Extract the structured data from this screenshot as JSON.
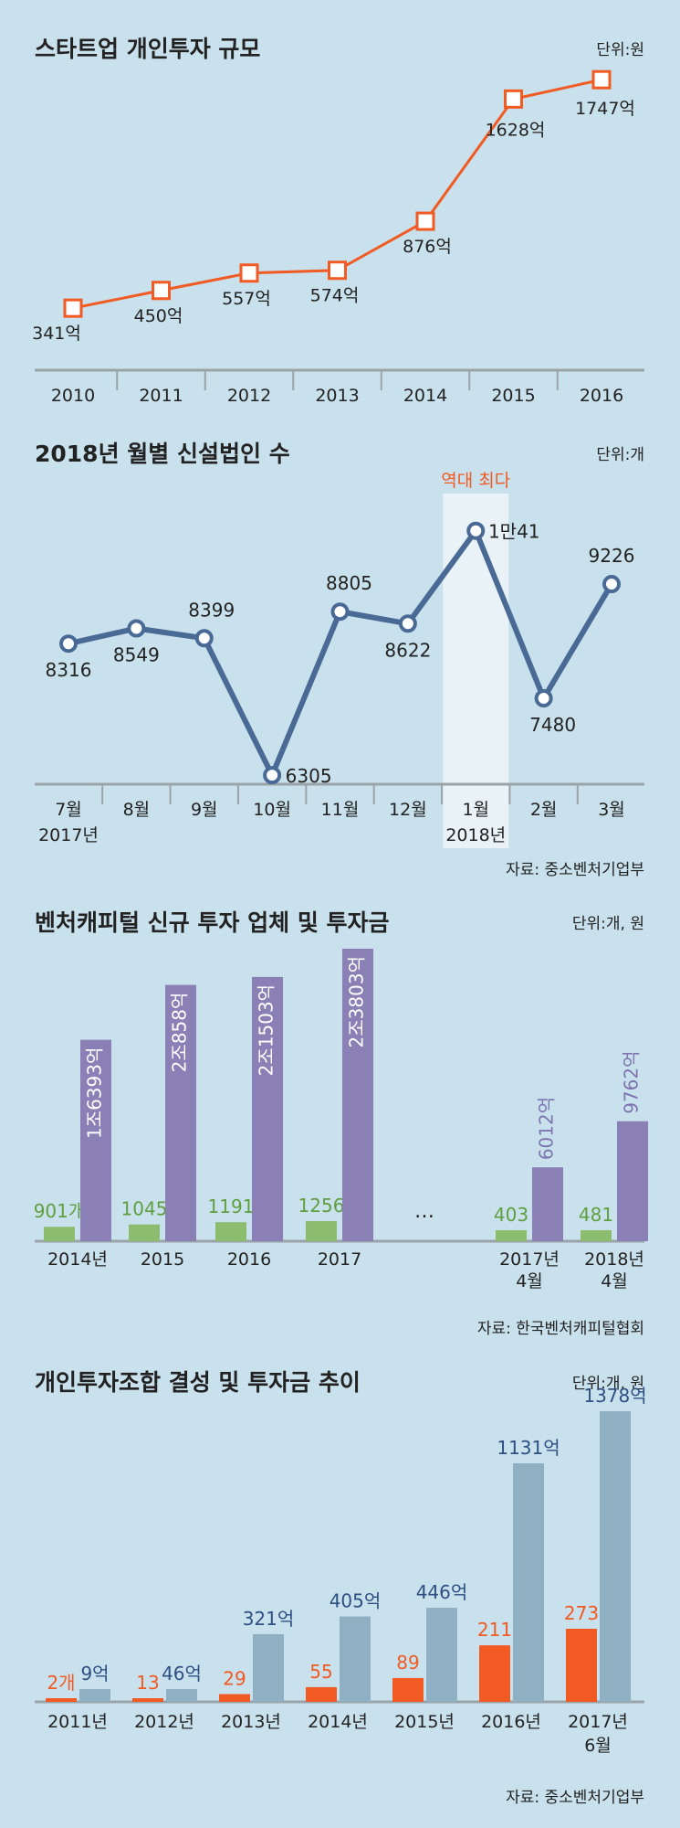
{
  "colors": {
    "background": "#c9e1ec",
    "axis": "#9aa3a8",
    "text": "#222222",
    "orange": "#f15a22",
    "navy_line": "#4a6a96",
    "purple": "#8a80b6",
    "purple_text": "#7d74b0",
    "green": "#8cbd6e",
    "green_text": "#5f9f3f",
    "steel": "#8fb0c3",
    "navy_text": "#2d4f83",
    "highlight": "#e9f2f7",
    "white": "#ffffff"
  },
  "chart_data": [
    {
      "type": "line",
      "title": "스타트업 개인투자 규모",
      "unit": "단위:원",
      "categories": [
        "2010",
        "2011",
        "2012",
        "2013",
        "2014",
        "2015",
        "2016"
      ],
      "values": [
        341,
        450,
        557,
        574,
        876,
        1628,
        1747
      ],
      "labels": [
        "341억",
        "450억",
        "557억",
        "574억",
        "876억",
        "1628억",
        "1747억"
      ],
      "ylim": [
        100,
        1900
      ],
      "marker": "square",
      "color": "#f15a22"
    },
    {
      "type": "line",
      "title": "2018년 월별 신설법인 수",
      "unit": "단위:개",
      "categories": [
        "7월",
        "8월",
        "9월",
        "10월",
        "11월",
        "12월",
        "1월",
        "2월",
        "3월"
      ],
      "year_labels": [
        "2017년",
        "",
        "",
        "",
        "",
        "",
        "2018년",
        "",
        ""
      ],
      "values": [
        8316,
        8549,
        8399,
        6305,
        8805,
        8622,
        10041,
        7480,
        9226
      ],
      "labels": [
        "8316",
        "8549",
        "8399",
        "6305",
        "8805",
        "8622",
        "1만41",
        "7480",
        "9226"
      ],
      "highlight_label": "역대 최다",
      "highlight_index": 6,
      "ylim": [
        6000,
        10400
      ],
      "source": "자료: 중소벤처기업부",
      "color": "#4a6a96"
    },
    {
      "type": "bar",
      "title": "벤처캐피털 신규 투자 업체 및 투자금",
      "unit": "단위:개, 원",
      "categories": [
        "2014년",
        "2015",
        "2016",
        "2017",
        "…",
        "2017년\n4월",
        "2018년\n4월"
      ],
      "series": [
        {
          "values": [
            901,
            1045,
            1191,
            1256,
            null,
            403,
            481
          ],
          "labels": [
            "901개",
            "1045",
            "1191",
            "1256",
            "",
            "403",
            "481"
          ],
          "color": "#8cbd6e"
        },
        {
          "values": [
            16393,
            20858,
            21503,
            23803,
            null,
            6012,
            9762
          ],
          "labels": [
            "1조6393억",
            "2조858억",
            "2조1503억",
            "2조3803억",
            "",
            "6012억",
            "9762억"
          ],
          "color": "#8a80b6"
        }
      ],
      "source": "자료: 한국벤처캐피털협회"
    },
    {
      "type": "bar",
      "title": "개인투자조합 결성 및 투자금 추이",
      "unit": "단위:개, 원",
      "categories": [
        "2011년",
        "2012년",
        "2013년",
        "2014년",
        "2015년",
        "2016년",
        "2017년\n6월"
      ],
      "series": [
        {
          "values": [
            2,
            13,
            29,
            55,
            89,
            211,
            273
          ],
          "labels": [
            "2개",
            "13",
            "29",
            "55",
            "89",
            "211",
            "273"
          ],
          "color": "#f15a22"
        },
        {
          "values": [
            9,
            46,
            321,
            405,
            446,
            1131,
            1378
          ],
          "labels": [
            "9억",
            "46억",
            "321억",
            "405억",
            "446억",
            "1131억",
            "1378억"
          ],
          "color": "#8fb0c3"
        }
      ],
      "source": "자료: 중소벤처기업부"
    }
  ]
}
